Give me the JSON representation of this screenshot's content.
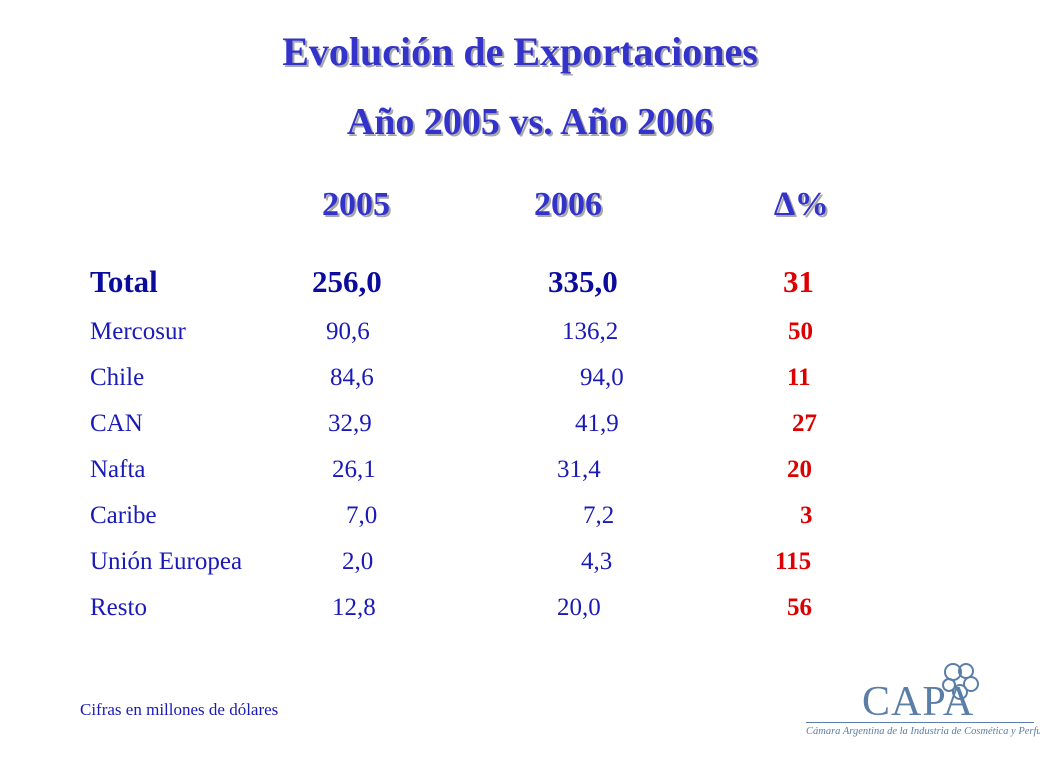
{
  "title": "Evolución de Exportaciones",
  "subtitle": "Año 2005  vs.  Año 2006",
  "headers": {
    "y2005": "2005",
    "y2006": "2006",
    "delta": "∆%"
  },
  "rows": [
    {
      "label": "Total",
      "v2005": "256,0",
      "v2006": "335,0",
      "delta": "31"
    },
    {
      "label": "Mercosur",
      "v2005": "90,6",
      "v2006": "136,2",
      "delta": "50"
    },
    {
      "label": "Chile",
      "v2005": "84,6",
      "v2006": "94,0",
      "delta": "11"
    },
    {
      "label": "CAN",
      "v2005": "32,9",
      "v2006": "41,9",
      "delta": "27"
    },
    {
      "label": "Nafta",
      "v2005": "26,1",
      "v2006": "31,4",
      "delta": "20"
    },
    {
      "label": "Caribe",
      "v2005": "7,0",
      "v2006": "7,2",
      "delta": "3"
    },
    {
      "label": "Unión Europea",
      "v2005": "2,0",
      "v2006": "4,3",
      "delta": "115"
    },
    {
      "label": "Resto",
      "v2005": "12,8",
      "v2006": "20,0",
      "delta": "56"
    }
  ],
  "footnote": "Cifras en millones de dólares",
  "logo": {
    "name": "CAPA",
    "tagline": "Cámara Argentina de la Industria de Cosmética y Perfumería",
    "color": "#5a7ea8",
    "icon": "flower-icon"
  },
  "colors": {
    "title": "#3333cc",
    "text": "#1a1ab8",
    "delta": "#dd0000"
  }
}
